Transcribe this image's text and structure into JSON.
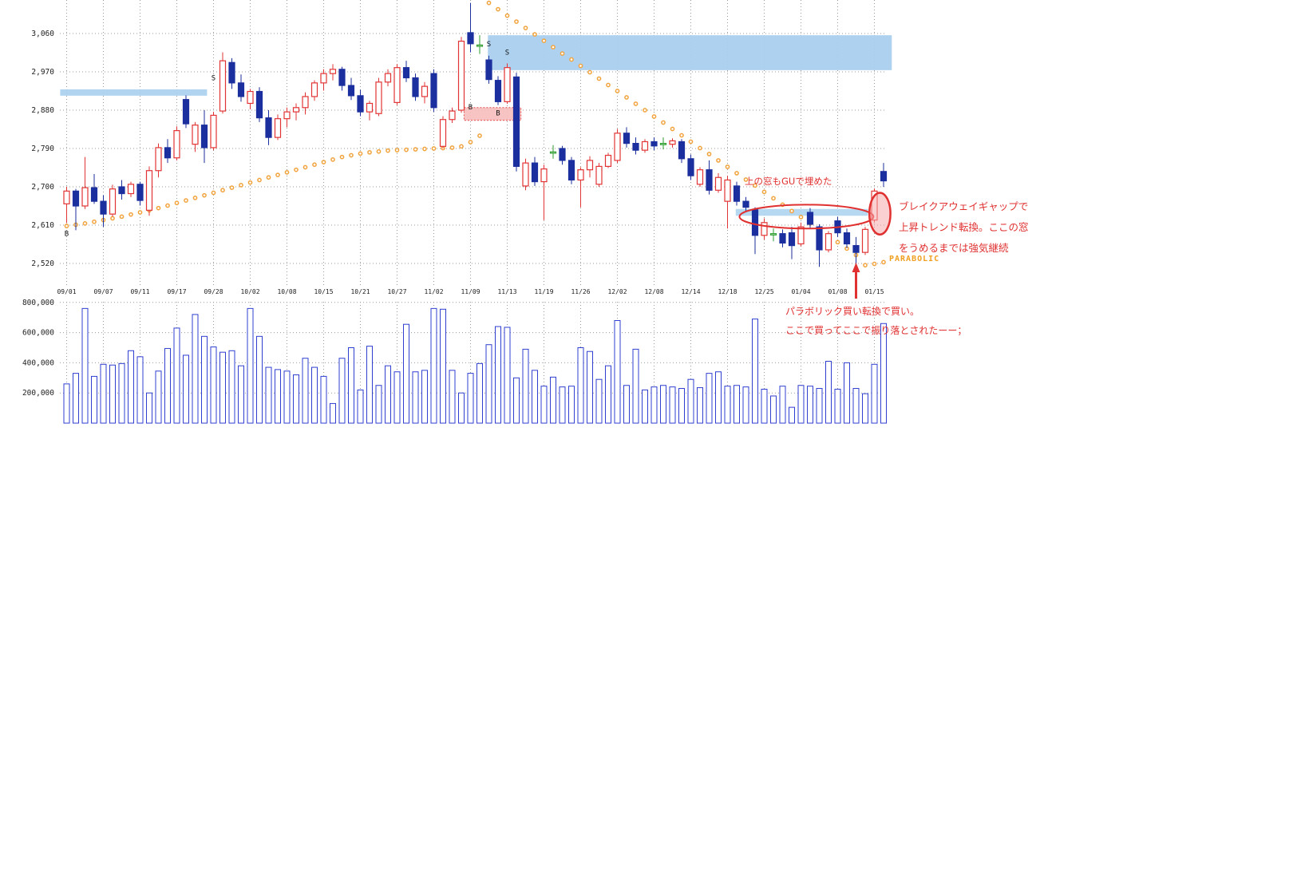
{
  "colors": {
    "up": "#e23434",
    "down": "#1b2f9e",
    "doji": "#2f9e2f",
    "sar": "#f2a33c",
    "volume": "#2f3fd0",
    "grid": "#9a9a9a",
    "band_blue": "#a9cfee",
    "band_pink": "#f6bcbc",
    "annotation_red": "#e03030",
    "parabolic_orange": "#f0a020",
    "axis_text": "#222222"
  },
  "chart_data": {
    "type": "candlestick",
    "title": "",
    "legend": "none",
    "grid": "dotted",
    "panes": [
      "price",
      "volume"
    ],
    "y_axis": {
      "min": 2470,
      "max": 3140,
      "ticks": [
        {
          "v": 3060,
          "label": "3,060"
        },
        {
          "v": 2970,
          "label": "2,970"
        },
        {
          "v": 2880,
          "label": "2,880"
        },
        {
          "v": 2790,
          "label": "2,790"
        },
        {
          "v": 2700,
          "label": "2,700"
        },
        {
          "v": 2610,
          "label": "2,610"
        },
        {
          "v": 2520,
          "label": "2,520"
        }
      ]
    },
    "volume_axis": {
      "min": 0,
      "max": 800000,
      "ticks": [
        {
          "v": 800000,
          "label": "800,000"
        },
        {
          "v": 600000,
          "label": "600,000"
        },
        {
          "v": 400000,
          "label": "400,000"
        },
        {
          "v": 200000,
          "label": "200,000"
        }
      ]
    },
    "x_axis": {
      "tick_indices": [
        0,
        4,
        8,
        12,
        16,
        20,
        24,
        28,
        32,
        36,
        40,
        44,
        48,
        52,
        56,
        60,
        64,
        68,
        72,
        76,
        80,
        84,
        88
      ],
      "tick_labels": [
        "09/01",
        "09/07",
        "09/11",
        "09/17",
        "09/28",
        "10/02",
        "10/08",
        "10/15",
        "10/21",
        "10/27",
        "11/02",
        "11/09",
        "11/13",
        "11/19",
        "11/26",
        "12/02",
        "12/08",
        "12/14",
        "12/18",
        "12/25",
        "01/04",
        "01/08",
        "01/15"
      ]
    },
    "sessions": 90,
    "ohlc": [
      [
        2660,
        2700,
        2615,
        2690
      ],
      [
        2690,
        2695,
        2598,
        2655
      ],
      [
        2655,
        2770,
        2648,
        2698
      ],
      [
        2698,
        2730,
        2660,
        2666
      ],
      [
        2666,
        2680,
        2606,
        2636
      ],
      [
        2636,
        2705,
        2630,
        2695
      ],
      [
        2700,
        2716,
        2670,
        2684
      ],
      [
        2684,
        2712,
        2676,
        2706
      ],
      [
        2706,
        2712,
        2656,
        2668
      ],
      [
        2645,
        2748,
        2632,
        2738
      ],
      [
        2738,
        2802,
        2722,
        2792
      ],
      [
        2792,
        2812,
        2756,
        2768
      ],
      [
        2768,
        2842,
        2762,
        2832
      ],
      [
        2905,
        2915,
        2838,
        2848
      ],
      [
        2800,
        2852,
        2782,
        2845
      ],
      [
        2845,
        2880,
        2756,
        2792
      ],
      [
        2792,
        2876,
        2786,
        2868
      ],
      [
        2878,
        3016,
        2872,
        2996
      ],
      [
        2992,
        3002,
        2930,
        2944
      ],
      [
        2944,
        2964,
        2900,
        2912
      ],
      [
        2896,
        2930,
        2882,
        2924
      ],
      [
        2924,
        2934,
        2852,
        2862
      ],
      [
        2862,
        2880,
        2798,
        2816
      ],
      [
        2816,
        2870,
        2810,
        2860
      ],
      [
        2860,
        2886,
        2840,
        2876
      ],
      [
        2876,
        2896,
        2856,
        2886
      ],
      [
        2886,
        2922,
        2870,
        2912
      ],
      [
        2912,
        2950,
        2902,
        2944
      ],
      [
        2944,
        2976,
        2926,
        2966
      ],
      [
        2966,
        2988,
        2950,
        2976
      ],
      [
        2976,
        2982,
        2926,
        2938
      ],
      [
        2938,
        2956,
        2904,
        2914
      ],
      [
        2914,
        2928,
        2866,
        2876
      ],
      [
        2876,
        2902,
        2856,
        2896
      ],
      [
        2872,
        2956,
        2866,
        2946
      ],
      [
        2946,
        2976,
        2936,
        2966
      ],
      [
        2898,
        2988,
        2892,
        2980
      ],
      [
        2980,
        2996,
        2946,
        2956
      ],
      [
        2956,
        2966,
        2902,
        2912
      ],
      [
        2912,
        2946,
        2896,
        2936
      ],
      [
        2966,
        2976,
        2876,
        2886
      ],
      [
        2795,
        2866,
        2790,
        2858
      ],
      [
        2858,
        2886,
        2850,
        2878
      ],
      [
        2880,
        3052,
        2874,
        3042
      ],
      [
        3062,
        3132,
        3016,
        3036
      ],
      [
        3030,
        3056,
        3012,
        3033
      ],
      [
        2998,
        3008,
        2942,
        2952
      ],
      [
        2950,
        2960,
        2892,
        2900
      ],
      [
        2900,
        2990,
        2895,
        2980
      ],
      [
        2958,
        2968,
        2736,
        2748
      ],
      [
        2702,
        2766,
        2692,
        2756
      ],
      [
        2756,
        2770,
        2702,
        2712
      ],
      [
        2712,
        2752,
        2622,
        2742
      ],
      [
        2780,
        2798,
        2766,
        2782
      ],
      [
        2790,
        2796,
        2752,
        2762
      ],
      [
        2762,
        2770,
        2706,
        2716
      ],
      [
        2716,
        2746,
        2652,
        2740
      ],
      [
        2740,
        2772,
        2722,
        2762
      ],
      [
        2706,
        2756,
        2700,
        2748
      ],
      [
        2748,
        2780,
        2744,
        2774
      ],
      [
        2762,
        2836,
        2756,
        2826
      ],
      [
        2826,
        2840,
        2792,
        2802
      ],
      [
        2802,
        2816,
        2776,
        2786
      ],
      [
        2786,
        2812,
        2780,
        2806
      ],
      [
        2806,
        2816,
        2786,
        2796
      ],
      [
        2800,
        2816,
        2788,
        2802
      ],
      [
        2800,
        2814,
        2792,
        2808
      ],
      [
        2806,
        2812,
        2756,
        2766
      ],
      [
        2766,
        2776,
        2716,
        2726
      ],
      [
        2706,
        2746,
        2700,
        2740
      ],
      [
        2740,
        2762,
        2682,
        2692
      ],
      [
        2692,
        2732,
        2686,
        2722
      ],
      [
        2666,
        2726,
        2602,
        2716
      ],
      [
        2702,
        2712,
        2656,
        2666
      ],
      [
        2666,
        2676,
        2642,
        2652
      ],
      [
        2646,
        2652,
        2542,
        2586
      ],
      [
        2586,
        2626,
        2576,
        2616
      ],
      [
        2588,
        2602,
        2572,
        2590
      ],
      [
        2590,
        2600,
        2558,
        2568
      ],
      [
        2592,
        2606,
        2530,
        2562
      ],
      [
        2566,
        2616,
        2560,
        2606
      ],
      [
        2640,
        2650,
        2602,
        2612
      ],
      [
        2606,
        2612,
        2512,
        2552
      ],
      [
        2552,
        2596,
        2546,
        2590
      ],
      [
        2620,
        2630,
        2582,
        2592
      ],
      [
        2592,
        2602,
        2556,
        2566
      ],
      [
        2562,
        2582,
        2516,
        2546
      ],
      [
        2546,
        2606,
        2540,
        2600
      ],
      [
        2622,
        2696,
        2616,
        2690
      ],
      [
        2736,
        2756,
        2700,
        2714
      ]
    ],
    "doji_indices": [
      45,
      53,
      65,
      77
    ],
    "volume": [
      260000,
      330000,
      760000,
      310000,
      390000,
      385000,
      395000,
      480000,
      440000,
      200000,
      345000,
      495000,
      630000,
      450000,
      720000,
      575000,
      505000,
      470000,
      480000,
      380000,
      760000,
      575000,
      370000,
      355000,
      345000,
      320000,
      430000,
      370000,
      310000,
      130000,
      430000,
      500000,
      220000,
      510000,
      250000,
      380000,
      340000,
      655000,
      340000,
      350000,
      760000,
      755000,
      350000,
      200000,
      330000,
      395000,
      520000,
      640000,
      635000,
      300000,
      490000,
      350000,
      245000,
      305000,
      240000,
      245000,
      500000,
      475000,
      290000,
      380000,
      680000,
      250000,
      490000,
      220000,
      240000,
      250000,
      240000,
      230000,
      290000,
      235000,
      330000,
      340000,
      245000,
      250000,
      240000,
      690000,
      225000,
      180000,
      245000,
      105000,
      250000,
      245000,
      230000,
      410000,
      225000,
      400000,
      230000,
      195000,
      390000,
      660000
    ],
    "sar": [
      2608,
      2611,
      2614,
      2618,
      2622,
      2626,
      2630,
      2635,
      2640,
      2645,
      2650,
      2656,
      2662,
      2668,
      2674,
      2680,
      2686,
      2692,
      2698,
      2704,
      2710,
      2716,
      2722,
      2728,
      2734,
      2740,
      2746,
      2752,
      2758,
      2764,
      2770,
      2774,
      2778,
      2781,
      2783,
      2785,
      2786,
      2787,
      2788,
      2789,
      2790,
      2791,
      2792,
      2795,
      2805,
      2820,
      3132,
      3117,
      3102,
      3088,
      3073,
      3058,
      3043,
      3028,
      3013,
      2999,
      2984,
      2969,
      2954,
      2939,
      2925,
      2910,
      2895,
      2880,
      2865,
      2851,
      2836,
      2821,
      2806,
      2791,
      2777,
      2762,
      2747,
      2732,
      2717,
      2703,
      2688,
      2673,
      2658,
      2643,
      2629,
      2614,
      2599,
      2584,
      2570,
      2555,
      2540,
      2516,
      2519,
      2523
    ],
    "markers": [
      {
        "i": 0,
        "price": 2585,
        "label": "B"
      },
      {
        "i": 16,
        "price": 2950,
        "label": "S"
      },
      {
        "i": 44,
        "price": 2882,
        "label": "B"
      },
      {
        "i": 46,
        "price": 3030,
        "label": "S"
      },
      {
        "i": 47,
        "price": 2868,
        "label": "B"
      },
      {
        "i": 48,
        "price": 3010,
        "label": "S"
      }
    ],
    "zones": [
      {
        "name": "left-resistance-band",
        "i0": -0.4,
        "i1": 15.6,
        "p0": 2929,
        "p1": 2914,
        "fill": "#a9cfee",
        "opacity": 0.9
      },
      {
        "name": "upper-gap-window",
        "i0": 46.2,
        "i1": 90.2,
        "p0": 3056,
        "p1": 2974,
        "fill": "#a9cfee",
        "opacity": 0.95
      },
      {
        "name": "gap-window-pink",
        "i0": 43.6,
        "i1": 49.8,
        "p0": 2886,
        "p1": 2856,
        "fill": "#f6bcbc",
        "opacity": 0.9,
        "stroke": "#e05050"
      },
      {
        "name": "lower-window-filled-band",
        "i0": 73.2,
        "i1": 87.6,
        "p0": 2648,
        "p1": 2632,
        "fill": "#aed4f0",
        "opacity": 0.9
      }
    ],
    "ellipses": [
      {
        "name": "window-filled-ellipse",
        "ci": 80.6,
        "cp": 2630,
        "ri": 7.3,
        "rp": 28,
        "stroke_w": 2,
        "fill": "none"
      },
      {
        "name": "breakaway-gap-ellipse",
        "ci": 88.6,
        "cp": 2637,
        "ri": 1.15,
        "rp": 49,
        "stroke_w": 2.5,
        "fill": "rgba(246,170,170,0.55)"
      }
    ],
    "arrow": {
      "i": 86
    },
    "annotations": {
      "window_filled_note": "上の窓もGUで埋めた",
      "breakaway_line1": "ブレイクアウェイギャップで",
      "breakaway_line2": "上昇トレンド転換。ここの窓",
      "breakaway_line3": "をうめるまでは強気継続",
      "parabolic_label": "PARABOLIC",
      "parabolic_buy_line1": "パラボリック買い転換で買い。",
      "parabolic_buy_line2": "ここで買ってここで振り落とされたーー；"
    }
  }
}
